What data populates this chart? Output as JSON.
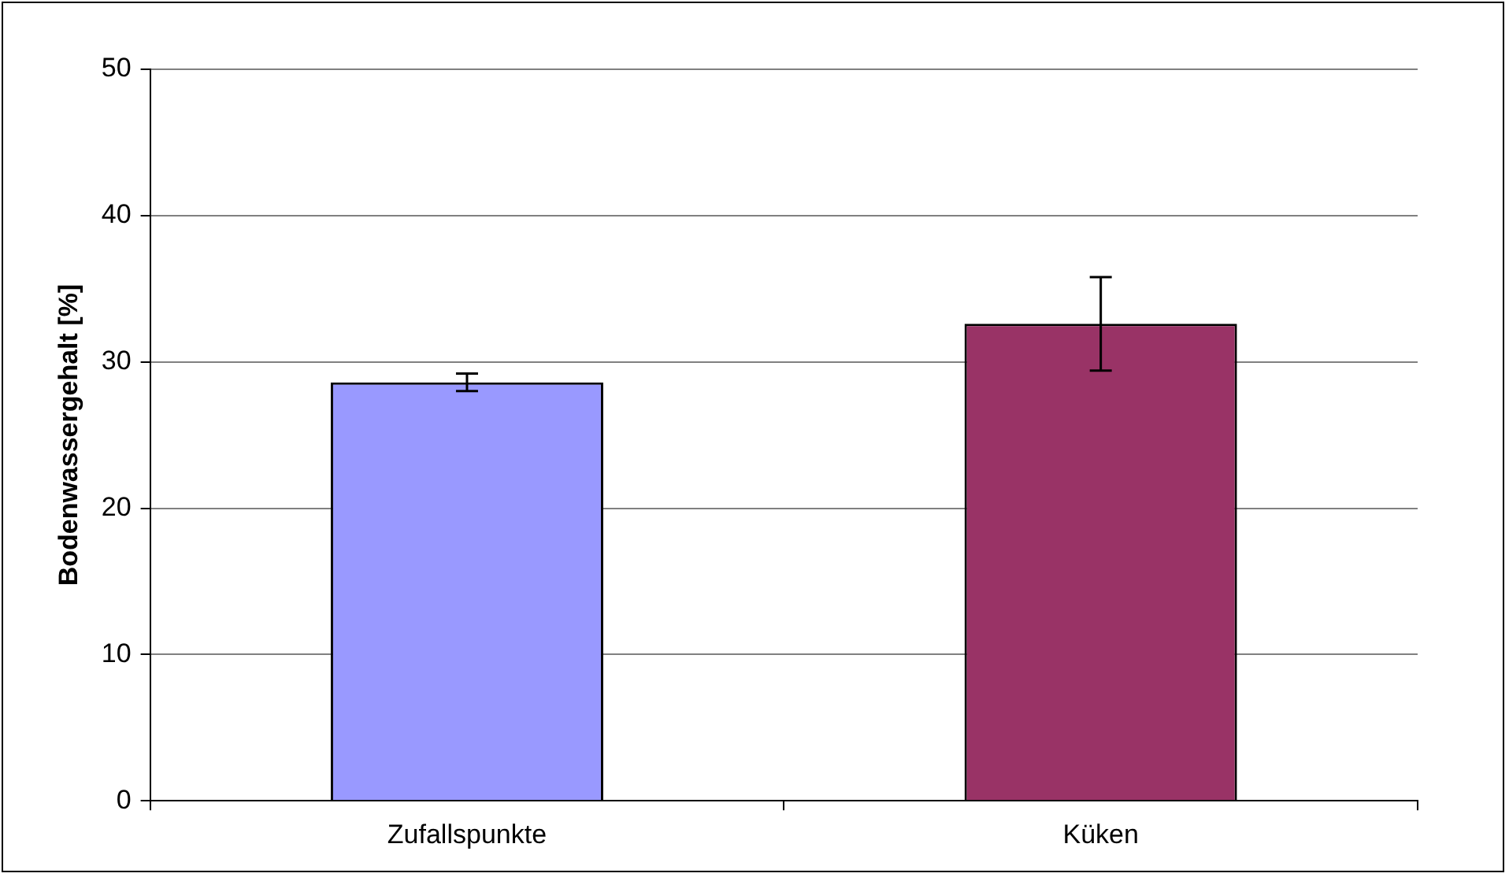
{
  "chart_data": {
    "type": "bar",
    "ylabel": "Bodenwassergehalt [%]",
    "categories": [
      "Zufallspunkte",
      "Küken"
    ],
    "values": [
      28.6,
      32.6
    ],
    "colors": [
      "#9999ff",
      "#993366"
    ],
    "errors": [
      0.6,
      3.2
    ],
    "ylim": [
      0,
      50
    ],
    "yticks": [
      0,
      10,
      20,
      30,
      40,
      50
    ],
    "grid": "y",
    "legend": false
  }
}
